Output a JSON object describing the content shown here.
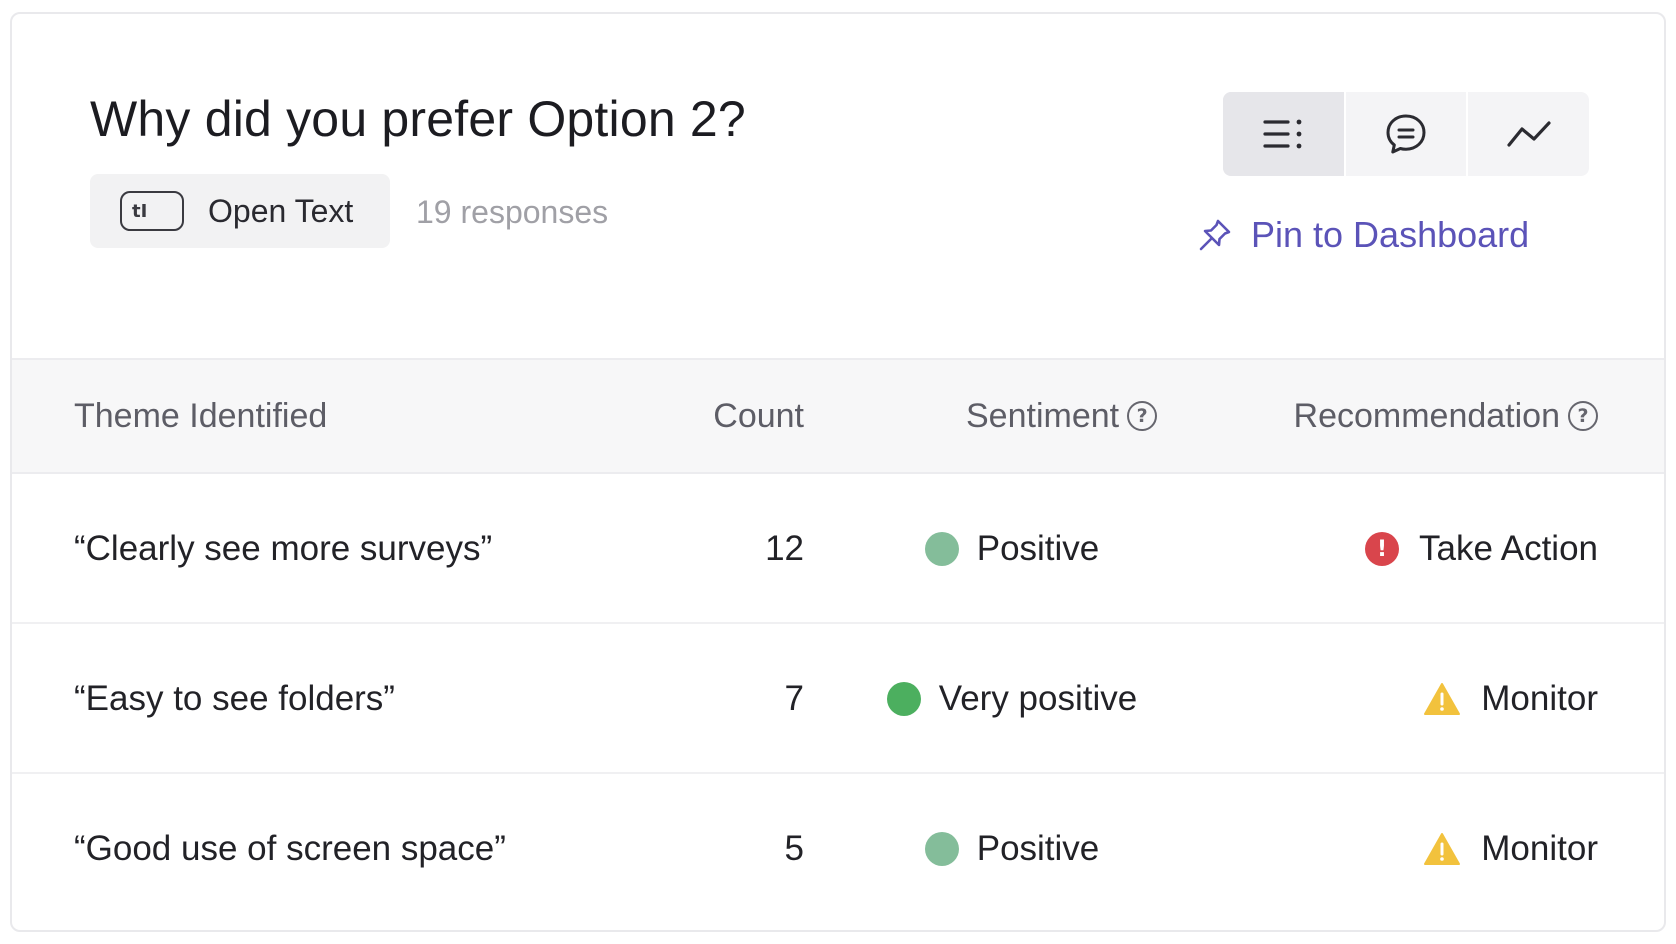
{
  "header": {
    "title": "Why did you prefer Option 2?",
    "question_type": {
      "label": "Open Text",
      "icon": "text-cursor-icon",
      "icon_glyph": "tI"
    },
    "responses": "19 responses",
    "view_toggle": [
      {
        "icon": "list-icon",
        "active": true
      },
      {
        "icon": "speech-bubble-icon",
        "active": false
      },
      {
        "icon": "trend-line-icon",
        "active": false
      }
    ],
    "pin_link": {
      "label": "Pin to Dashboard",
      "icon": "pin-icon",
      "color": "#5b53b8"
    }
  },
  "table": {
    "columns": {
      "theme": "Theme Identified",
      "count": "Count",
      "sentiment": "Sentiment",
      "recommendation": "Recommendation"
    },
    "help_glyph": "?",
    "rows": [
      {
        "theme": "“Clearly see more surveys”",
        "count": "12",
        "sentiment": {
          "label": "Positive",
          "color": "#84bd9a"
        },
        "recommendation": {
          "label": "Take Action",
          "icon": "alert-circle-icon",
          "color": "#d9454c",
          "glyph": "!"
        }
      },
      {
        "theme": "“Easy to see folders”",
        "count": "7",
        "sentiment": {
          "label": "Very positive",
          "color": "#4caf5f"
        },
        "recommendation": {
          "label": "Monitor",
          "icon": "warning-triangle-icon",
          "color": "#f2c23d",
          "glyph": "!"
        }
      },
      {
        "theme": "“Good use of screen space”",
        "count": "5",
        "sentiment": {
          "label": "Positive",
          "color": "#84bd9a"
        },
        "recommendation": {
          "label": "Monitor",
          "icon": "warning-triangle-icon",
          "color": "#f2c23d",
          "glyph": "!"
        }
      }
    ]
  }
}
